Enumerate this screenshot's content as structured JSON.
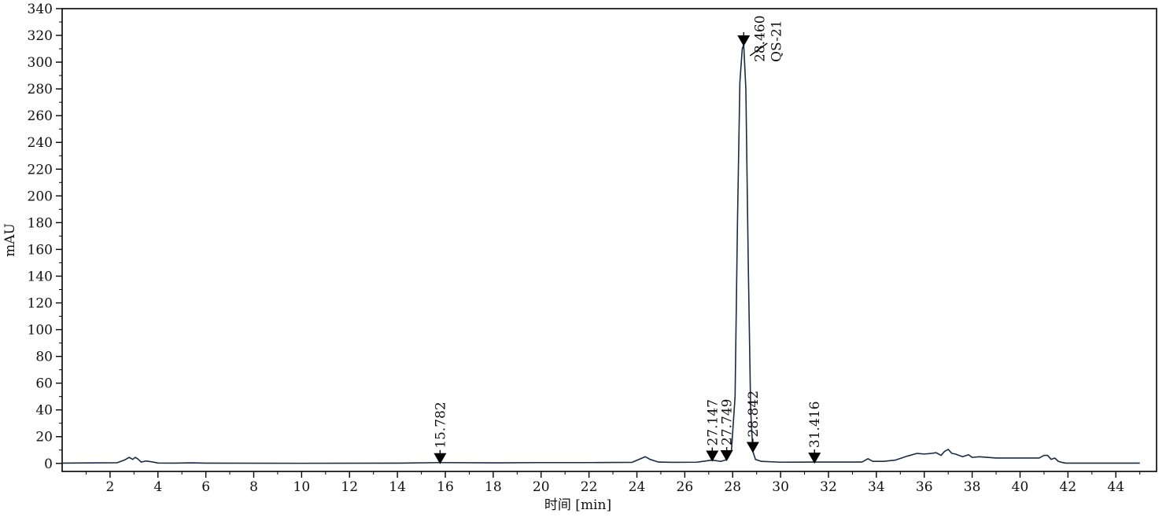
{
  "chart_data": {
    "type": "line",
    "title": "",
    "xlabel": "时间 [min]",
    "ylabel": "mAU",
    "xlim": [
      0,
      45.7
    ],
    "ylim": [
      -6,
      340
    ],
    "xticks": [
      2,
      4,
      6,
      8,
      10,
      12,
      14,
      16,
      18,
      20,
      22,
      24,
      26,
      28,
      30,
      32,
      34,
      36,
      38,
      40,
      42,
      44
    ],
    "yticks": [
      0,
      20,
      40,
      60,
      80,
      100,
      120,
      140,
      160,
      180,
      200,
      220,
      240,
      260,
      280,
      300,
      320,
      340
    ],
    "grid": false,
    "legend": "none",
    "colors": {
      "trace": "#1a2b44",
      "axis": "#000000",
      "marker": "#000000"
    },
    "series": [
      {
        "x": [
          0,
          2.3,
          2.6,
          2.8,
          2.95,
          3.05,
          3.15,
          3.3,
          3.5,
          3.8,
          4.0,
          4.7,
          5.4,
          6.0,
          10,
          14,
          15.782,
          18,
          20,
          22,
          23.8,
          24.15,
          24.35,
          24.55,
          24.9,
          25.5,
          26.5,
          27.147,
          27.5,
          27.749,
          27.95,
          28.1,
          28.2,
          28.3,
          28.4,
          28.46,
          28.55,
          28.65,
          28.75,
          28.842,
          28.95,
          29.2,
          30,
          31.416,
          33.4,
          33.65,
          33.85,
          34.3,
          34.8,
          35.3,
          35.7,
          36.0,
          36.3,
          36.5,
          36.7,
          36.85,
          37.0,
          37.15,
          37.3,
          37.6,
          37.85,
          38.0,
          38.3,
          39,
          40,
          40.8,
          41.0,
          41.15,
          41.3,
          41.45,
          41.6,
          41.75,
          41.9,
          45
        ],
        "y": [
          0.2,
          0.5,
          2.5,
          4.5,
          3.0,
          4.5,
          3.5,
          1.0,
          1.8,
          1.0,
          0.3,
          0.2,
          0.4,
          0.2,
          0.1,
          0.2,
          0.6,
          0.4,
          0.6,
          0.6,
          0.8,
          3.5,
          5.0,
          3.0,
          1.0,
          0.8,
          0.9,
          2.5,
          1.5,
          2.8,
          10,
          50,
          180,
          285,
          310,
          313,
          280,
          150,
          40,
          9,
          3,
          1.5,
          0.9,
          1.0,
          1.0,
          3.5,
          1.5,
          1.5,
          2.5,
          5.5,
          7.5,
          7.0,
          7.5,
          8.0,
          6.0,
          9.0,
          10.5,
          7.5,
          7.0,
          5.0,
          6.5,
          4.5,
          5.0,
          4.0,
          4.0,
          4.0,
          6.0,
          6.0,
          3.0,
          4.0,
          1.5,
          0.8,
          0.2,
          0.2
        ]
      }
    ],
    "peaks": [
      {
        "rt": 15.782,
        "label": "15.782"
      },
      {
        "rt": 27.147,
        "label": "27.147"
      },
      {
        "rt": 27.749,
        "label": "27.749"
      },
      {
        "rt": 28.46,
        "label": "28.460",
        "name": "QS-21"
      },
      {
        "rt": 28.842,
        "label": "28.842"
      },
      {
        "rt": 31.416,
        "label": "31.416"
      }
    ]
  }
}
